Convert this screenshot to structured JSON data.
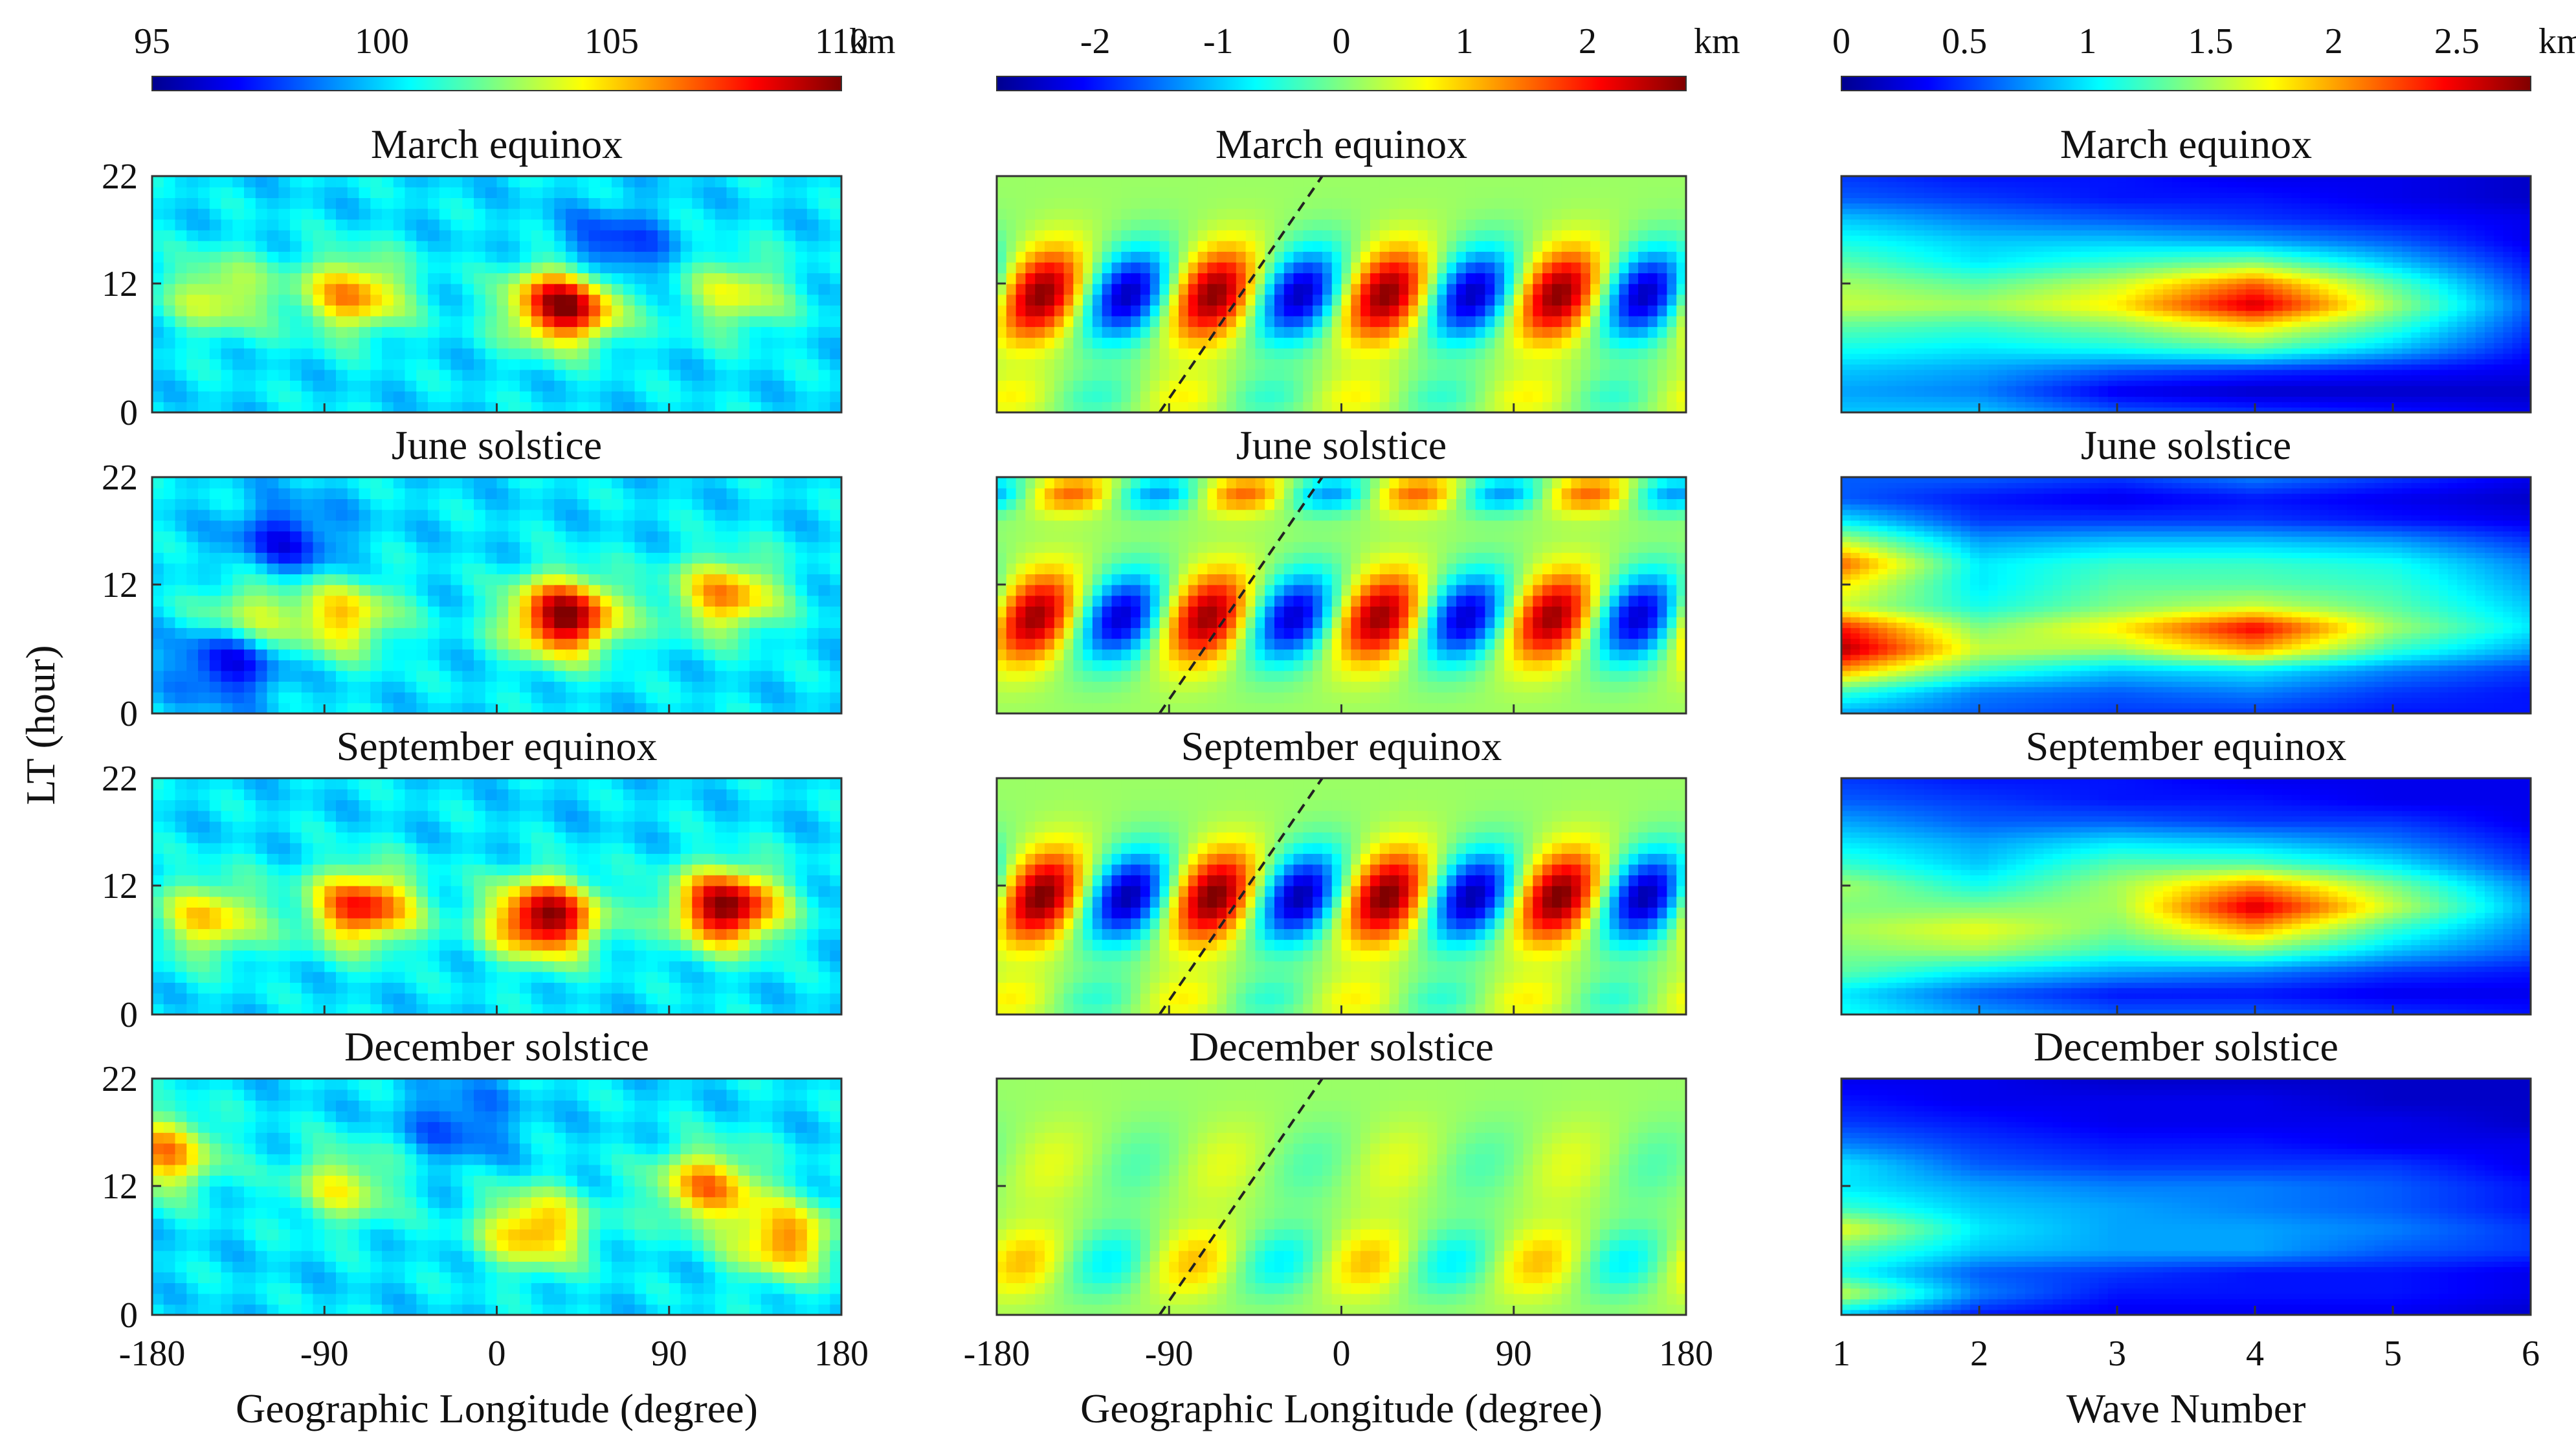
{
  "chart_data": [
    {
      "type": "heatmap",
      "name": "column-1-height",
      "colorbar": {
        "ticks": [
          "95",
          "100",
          "105",
          "110"
        ],
        "unit": "km",
        "range": [
          95,
          110
        ]
      },
      "panels": [
        "March equinox",
        "June solstice",
        "September equinox",
        "December solstice"
      ],
      "ylabel": "LT (hour)",
      "yticks": [
        "0",
        "12",
        "22"
      ],
      "xticks": [
        "-180",
        "-90",
        "0",
        "90",
        "180"
      ],
      "xlabel": "Geographic Longitude (degree)",
      "xlim": [
        -180,
        180
      ],
      "ylim": [
        0,
        22
      ],
      "blobs": [
        [
          {
            "x": 35,
            "y": 10,
            "v": 110
          },
          {
            "x": -75,
            "y": 11,
            "v": 106
          },
          {
            "x": 125,
            "y": 11,
            "v": 104
          },
          {
            "x": -145,
            "y": 11,
            "v": 104
          },
          {
            "x": 60,
            "y": 15,
            "v": 97
          }
        ],
        [
          {
            "x": 35,
            "y": 9,
            "v": 110
          },
          {
            "x": 120,
            "y": 11,
            "v": 106
          },
          {
            "x": -80,
            "y": 9,
            "v": 105
          },
          {
            "x": -130,
            "y": 9,
            "v": 104
          },
          {
            "x": -140,
            "y": 5,
            "v": 96
          },
          {
            "x": -110,
            "y": 16,
            "v": 97
          }
        ],
        [
          {
            "x": 120,
            "y": 10,
            "v": 110
          },
          {
            "x": 25,
            "y": 9,
            "v": 110
          },
          {
            "x": -70,
            "y": 10,
            "v": 108
          },
          {
            "x": -150,
            "y": 9,
            "v": 105
          },
          {
            "x": 40,
            "y": 20,
            "v": 100
          }
        ],
        [
          {
            "x": 20,
            "y": 8,
            "v": 106
          },
          {
            "x": 110,
            "y": 12,
            "v": 106
          },
          {
            "x": -175,
            "y": 15,
            "v": 106
          },
          {
            "x": -80,
            "y": 12,
            "v": 104
          },
          {
            "x": 150,
            "y": 7,
            "v": 106
          },
          {
            "x": -20,
            "y": 18,
            "v": 98
          }
        ]
      ],
      "base": 100.2
    },
    {
      "type": "heatmap",
      "name": "column-2-wave4",
      "colorbar": {
        "ticks": [
          "-2",
          "-1",
          "0",
          "1",
          "2"
        ],
        "unit": "km",
        "range": [
          -2.8,
          2.8
        ]
      },
      "panels": [
        "March equinox",
        "June solstice",
        "September equinox",
        "December solstice"
      ],
      "xticks": [
        "-180",
        "-90",
        "0",
        "90",
        "180"
      ],
      "xlabel": "Geographic Longitude (degree)",
      "xlim": [
        -180,
        180
      ],
      "ylim": [
        0,
        22
      ],
      "wave_number": 4,
      "peak_longitude_at_noon": -65,
      "amplitude": [
        2.6,
        2.5,
        2.7,
        0.9
      ],
      "dashed_line": [
        {
          "x": -95,
          "y": 0
        },
        {
          "x": -10,
          "y": 22
        }
      ]
    },
    {
      "type": "heatmap",
      "name": "column-3-spectrum",
      "colorbar": {
        "ticks": [
          "0",
          "0.5",
          "1",
          "1.5",
          "2",
          "2.5"
        ],
        "unit": "km",
        "range": [
          0,
          2.8
        ]
      },
      "panels": [
        "March equinox",
        "June solstice",
        "September equinox",
        "December solstice"
      ],
      "xticks": [
        "1",
        "2",
        "3",
        "4",
        "5",
        "6"
      ],
      "xlabel": "Wave Number",
      "xlim": [
        1,
        6
      ],
      "ylim": [
        0,
        22
      ],
      "ygrid": [
        0,
        2,
        4,
        6,
        8,
        10,
        12,
        14,
        16,
        18,
        20,
        22
      ],
      "values": [
        [
          [
            0.9,
            0.9,
            0.6,
            0.5,
            0.4,
            0.3
          ],
          [
            0.8,
            0.7,
            0.3,
            0.2,
            0.2,
            0.2
          ],
          [
            0.9,
            0.8,
            0.6,
            0.5,
            0.4,
            0.3
          ],
          [
            1.1,
            1.0,
            1.1,
            1.3,
            0.9,
            0.4
          ],
          [
            1.3,
            1.2,
            1.4,
            1.8,
            1.2,
            0.5
          ],
          [
            1.6,
            1.5,
            1.8,
            2.6,
            1.5,
            0.6
          ],
          [
            1.5,
            1.3,
            1.6,
            2.2,
            1.3,
            0.5
          ],
          [
            1.3,
            1.0,
            1.2,
            1.4,
            0.9,
            0.4
          ],
          [
            1.1,
            0.9,
            0.9,
            0.8,
            0.6,
            0.3
          ],
          [
            0.9,
            0.7,
            0.6,
            0.5,
            0.4,
            0.3
          ],
          [
            0.6,
            0.5,
            0.4,
            0.4,
            0.3,
            0.2
          ],
          [
            0.5,
            0.4,
            0.4,
            0.3,
            0.3,
            0.2
          ]
        ],
        [
          [
            0.8,
            0.6,
            0.5,
            0.5,
            0.4,
            0.4
          ],
          [
            1.2,
            0.7,
            0.6,
            0.7,
            0.5,
            0.4
          ],
          [
            2.0,
            1.2,
            0.9,
            1.0,
            0.7,
            0.5
          ],
          [
            2.7,
            1.6,
            1.5,
            2.0,
            1.2,
            0.8
          ],
          [
            2.4,
            1.4,
            1.8,
            2.5,
            1.5,
            1.0
          ],
          [
            1.6,
            1.1,
            1.4,
            1.6,
            1.3,
            0.9
          ],
          [
            1.8,
            1.0,
            1.3,
            1.3,
            1.2,
            0.8
          ],
          [
            2.2,
            1.0,
            1.2,
            1.2,
            1.1,
            0.7
          ],
          [
            1.6,
            0.8,
            0.9,
            0.9,
            0.8,
            0.5
          ],
          [
            1.0,
            0.5,
            0.5,
            0.5,
            0.4,
            0.3
          ],
          [
            0.6,
            0.4,
            0.3,
            0.4,
            0.3,
            0.2
          ],
          [
            0.6,
            0.6,
            0.5,
            0.7,
            0.5,
            0.3
          ]
        ],
        [
          [
            1.1,
            0.8,
            0.6,
            0.6,
            0.5,
            0.4
          ],
          [
            1.0,
            0.6,
            0.4,
            0.4,
            0.3,
            0.3
          ],
          [
            1.3,
            1.0,
            0.8,
            0.7,
            0.5,
            0.4
          ],
          [
            1.4,
            1.5,
            1.2,
            1.4,
            0.9,
            0.6
          ],
          [
            1.5,
            1.7,
            1.4,
            2.0,
            1.2,
            0.7
          ],
          [
            1.4,
            1.4,
            1.5,
            2.6,
            1.6,
            0.8
          ],
          [
            1.5,
            1.1,
            1.5,
            2.1,
            1.4,
            0.7
          ],
          [
            1.2,
            0.9,
            1.3,
            1.3,
            1.0,
            0.5
          ],
          [
            1.0,
            0.8,
            1.0,
            0.9,
            0.7,
            0.4
          ],
          [
            0.8,
            0.6,
            0.6,
            0.5,
            0.5,
            0.3
          ],
          [
            0.6,
            0.5,
            0.4,
            0.4,
            0.3,
            0.3
          ],
          [
            0.5,
            0.4,
            0.4,
            0.3,
            0.3,
            0.3
          ]
        ],
        [
          [
            0.9,
            0.4,
            0.3,
            0.3,
            0.3,
            0.2
          ],
          [
            1.6,
            0.7,
            0.4,
            0.4,
            0.4,
            0.3
          ],
          [
            1.1,
            0.6,
            0.5,
            0.4,
            0.4,
            0.3
          ],
          [
            1.3,
            0.9,
            0.8,
            0.8,
            0.6,
            0.5
          ],
          [
            1.7,
            1.0,
            0.8,
            0.8,
            0.7,
            0.5
          ],
          [
            1.2,
            0.9,
            0.8,
            0.7,
            0.6,
            0.4
          ],
          [
            1.0,
            0.8,
            0.7,
            0.7,
            0.6,
            0.4
          ],
          [
            1.0,
            0.6,
            0.5,
            0.5,
            0.5,
            0.3
          ],
          [
            0.7,
            0.5,
            0.4,
            0.4,
            0.3,
            0.3
          ],
          [
            0.5,
            0.4,
            0.3,
            0.3,
            0.3,
            0.2
          ],
          [
            0.4,
            0.3,
            0.3,
            0.3,
            0.2,
            0.2
          ],
          [
            0.3,
            0.3,
            0.2,
            0.2,
            0.2,
            0.2
          ]
        ]
      ]
    }
  ]
}
